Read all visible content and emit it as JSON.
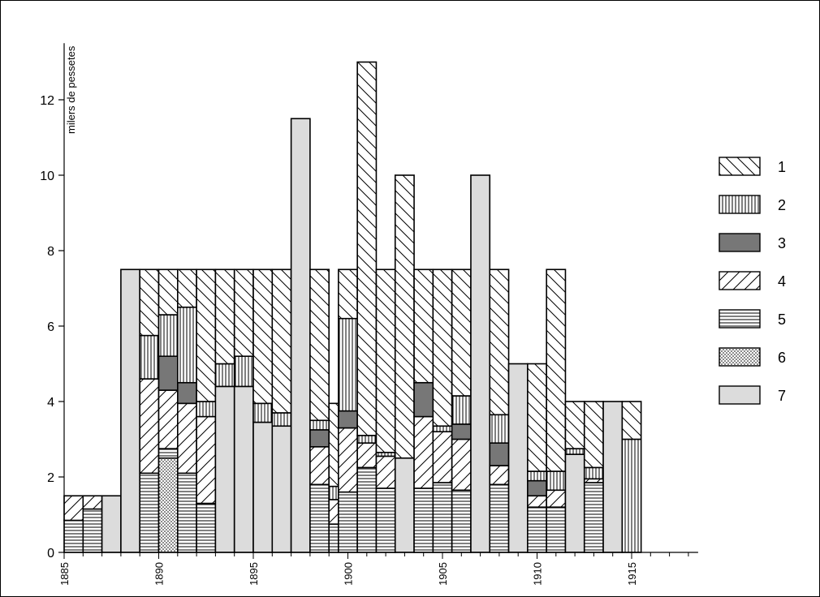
{
  "chart_data": {
    "type": "bar",
    "ylabel": "milers de pessetes",
    "ylim": [
      0,
      13.5
    ],
    "yticks": [
      0,
      2,
      4,
      6,
      8,
      10,
      12
    ],
    "xlim": [
      1885,
      1918
    ],
    "xticks": [
      1885,
      1890,
      1895,
      1900,
      1905,
      1910,
      1915
    ],
    "legend_position": "right",
    "series": [
      {
        "name": "1",
        "pattern": "diag-down",
        "color": "#ffffff"
      },
      {
        "name": "2",
        "pattern": "vertical",
        "color": "#ffffff"
      },
      {
        "name": "3",
        "pattern": "solid-dark",
        "color": "#777777"
      },
      {
        "name": "4",
        "pattern": "diag-up",
        "color": "#ffffff"
      },
      {
        "name": "5",
        "pattern": "horizontal",
        "color": "#ffffff"
      },
      {
        "name": "6",
        "pattern": "dots",
        "color": "#ffffff"
      },
      {
        "name": "7",
        "pattern": "solid-light",
        "color": "#dcdcdc"
      }
    ],
    "bars": [
      {
        "x0": 1885.0,
        "x1": 1886.0,
        "segments": [
          [
            5,
            0.85
          ],
          [
            4,
            0.65
          ]
        ]
      },
      {
        "x0": 1886.0,
        "x1": 1887.0,
        "segments": [
          [
            5,
            1.15
          ],
          [
            4,
            0.35
          ]
        ]
      },
      {
        "x0": 1887.0,
        "x1": 1888.0,
        "segments": [
          [
            7,
            1.5
          ]
        ]
      },
      {
        "x0": 1888.0,
        "x1": 1889.0,
        "segments": [
          [
            7,
            7.5
          ]
        ]
      },
      {
        "x0": 1889.0,
        "x1": 1890.0,
        "segments": [
          [
            5,
            2.1
          ],
          [
            4,
            2.5
          ],
          [
            2,
            1.15
          ],
          [
            1,
            1.75
          ]
        ]
      },
      {
        "x0": 1890.0,
        "x1": 1891.0,
        "segments": [
          [
            6,
            2.5
          ],
          [
            5,
            0.25
          ],
          [
            4,
            1.55
          ],
          [
            3,
            0.9
          ],
          [
            2,
            1.1
          ],
          [
            1,
            1.2
          ]
        ]
      },
      {
        "x0": 1891.0,
        "x1": 1892.0,
        "segments": [
          [
            5,
            2.1
          ],
          [
            4,
            1.85
          ],
          [
            3,
            0.55
          ],
          [
            2,
            2.0
          ],
          [
            1,
            1.0
          ]
        ]
      },
      {
        "x0": 1892.0,
        "x1": 1893.0,
        "segments": [
          [
            5,
            1.3
          ],
          [
            4,
            2.3
          ],
          [
            2,
            0.4
          ],
          [
            1,
            3.5
          ]
        ]
      },
      {
        "x0": 1893.0,
        "x1": 1894.0,
        "segments": [
          [
            7,
            4.4
          ],
          [
            2,
            0.6
          ],
          [
            1,
            2.5
          ]
        ]
      },
      {
        "x0": 1894.0,
        "x1": 1895.0,
        "segments": [
          [
            7,
            4.4
          ],
          [
            2,
            0.8
          ],
          [
            1,
            2.3
          ]
        ]
      },
      {
        "x0": 1895.0,
        "x1": 1896.0,
        "segments": [
          [
            7,
            3.45
          ],
          [
            2,
            0.5
          ],
          [
            1,
            3.55
          ]
        ]
      },
      {
        "x0": 1896.0,
        "x1": 1897.0,
        "segments": [
          [
            7,
            3.35
          ],
          [
            2,
            0.35
          ],
          [
            1,
            3.8
          ]
        ]
      },
      {
        "x0": 1897.0,
        "x1": 1898.0,
        "segments": [
          [
            7,
            11.5
          ]
        ]
      },
      {
        "x0": 1898.0,
        "x1": 1899.0,
        "segments": [
          [
            5,
            1.8
          ],
          [
            4,
            1.0
          ],
          [
            3,
            0.45
          ],
          [
            2,
            0.25
          ],
          [
            1,
            4.0
          ]
        ]
      },
      {
        "x0": 1899.0,
        "x1": 1899.5,
        "segments": [
          [
            5,
            0.75
          ],
          [
            4,
            0.65
          ],
          [
            2,
            0.35
          ],
          [
            1,
            2.2
          ]
        ]
      },
      {
        "x0": 1899.5,
        "x1": 1900.5,
        "segments": [
          [
            5,
            1.6
          ],
          [
            4,
            1.7
          ],
          [
            3,
            0.45
          ],
          [
            2,
            2.45
          ],
          [
            1,
            1.3
          ]
        ]
      },
      {
        "x0": 1900.5,
        "x1": 1901.5,
        "segments": [
          [
            5,
            2.25
          ],
          [
            4,
            0.65
          ],
          [
            2,
            0.2
          ],
          [
            1,
            9.9
          ]
        ]
      },
      {
        "x0": 1901.5,
        "x1": 1902.5,
        "segments": [
          [
            5,
            1.7
          ],
          [
            4,
            0.85
          ],
          [
            2,
            0.1
          ],
          [
            1,
            4.85
          ]
        ]
      },
      {
        "x0": 1902.5,
        "x1": 1903.5,
        "segments": [
          [
            7,
            2.5
          ],
          [
            1,
            7.5
          ]
        ]
      },
      {
        "x0": 1903.5,
        "x1": 1904.5,
        "segments": [
          [
            5,
            1.7
          ],
          [
            4,
            1.9
          ],
          [
            3,
            0.9
          ],
          [
            1,
            3.0
          ]
        ]
      },
      {
        "x0": 1904.5,
        "x1": 1905.5,
        "segments": [
          [
            5,
            1.85
          ],
          [
            4,
            1.35
          ],
          [
            2,
            0.15
          ],
          [
            1,
            4.15
          ]
        ]
      },
      {
        "x0": 1905.5,
        "x1": 1906.5,
        "segments": [
          [
            5,
            1.65
          ],
          [
            4,
            1.35
          ],
          [
            3,
            0.4
          ],
          [
            2,
            0.75
          ],
          [
            1,
            3.35
          ]
        ]
      },
      {
        "x0": 1906.5,
        "x1": 1907.5,
        "segments": [
          [
            7,
            10.0
          ]
        ]
      },
      {
        "x0": 1907.5,
        "x1": 1908.5,
        "segments": [
          [
            5,
            1.8
          ],
          [
            4,
            0.5
          ],
          [
            3,
            0.6
          ],
          [
            2,
            0.75
          ],
          [
            1,
            3.85
          ]
        ]
      },
      {
        "x0": 1908.5,
        "x1": 1909.5,
        "segments": [
          [
            7,
            5.0
          ]
        ]
      },
      {
        "x0": 1909.5,
        "x1": 1910.5,
        "segments": [
          [
            5,
            1.2
          ],
          [
            4,
            0.3
          ],
          [
            3,
            0.4
          ],
          [
            2,
            0.25
          ],
          [
            1,
            2.85
          ]
        ]
      },
      {
        "x0": 1910.5,
        "x1": 1911.5,
        "segments": [
          [
            5,
            1.2
          ],
          [
            4,
            0.45
          ],
          [
            2,
            0.5
          ],
          [
            1,
            5.35
          ]
        ]
      },
      {
        "x0": 1911.5,
        "x1": 1912.5,
        "segments": [
          [
            7,
            2.6
          ],
          [
            2,
            0.15
          ],
          [
            1,
            1.25
          ]
        ]
      },
      {
        "x0": 1912.5,
        "x1": 1913.5,
        "segments": [
          [
            5,
            1.85
          ],
          [
            4,
            0.1
          ],
          [
            2,
            0.3
          ],
          [
            1,
            1.75
          ]
        ]
      },
      {
        "x0": 1913.5,
        "x1": 1914.5,
        "segments": [
          [
            7,
            4.0
          ]
        ]
      },
      {
        "x0": 1914.5,
        "x1": 1915.5,
        "segments": [
          [
            2,
            3.0
          ],
          [
            1,
            1.0
          ]
        ]
      }
    ]
  }
}
